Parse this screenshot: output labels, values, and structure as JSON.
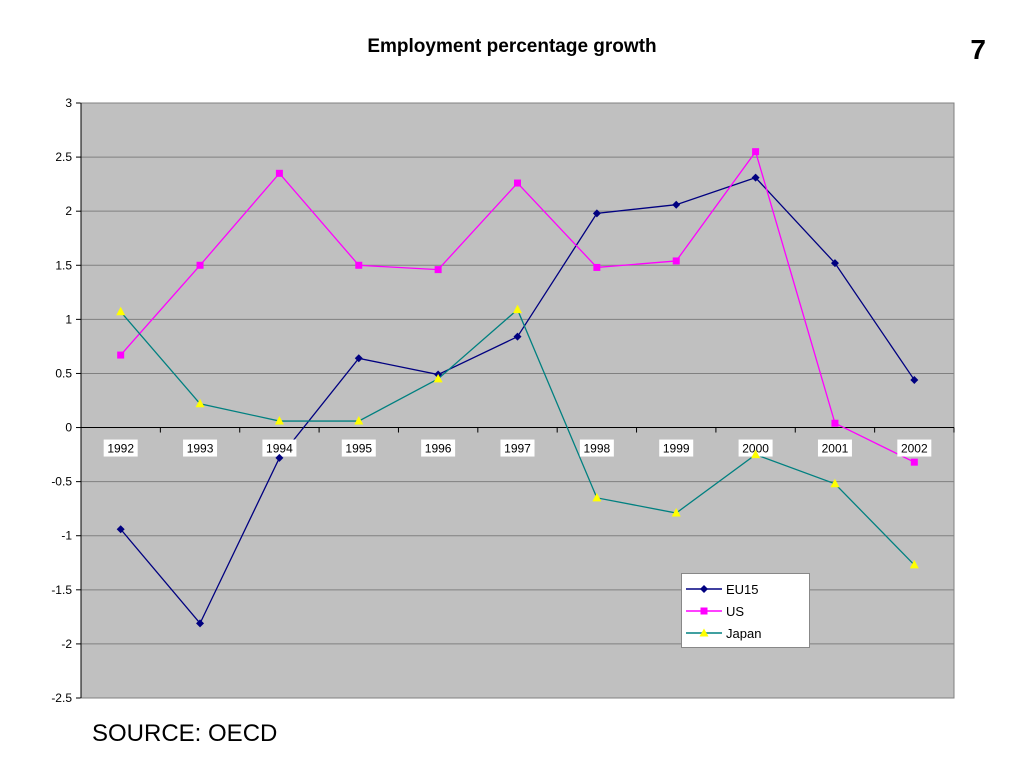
{
  "slide": {
    "page_number": "7",
    "source": "SOURCE: OECD"
  },
  "chart_data": {
    "type": "line",
    "title": "Employment percentage growth",
    "xlabel": "",
    "ylabel": "",
    "categories": [
      "1992",
      "1993",
      "1994",
      "1995",
      "1996",
      "1997",
      "1998",
      "1999",
      "2000",
      "2001",
      "2002"
    ],
    "ylim": [
      -2.5,
      3
    ],
    "yticks": [
      3,
      2.5,
      2,
      1.5,
      1,
      0.5,
      0,
      -0.5,
      -1,
      -1.5,
      -2,
      -2.5
    ],
    "ytick_labels": [
      "3",
      "2.5",
      "2",
      "1.5",
      "1",
      "0.5",
      "0",
      "-0.5",
      "-1",
      "-1.5",
      "-2",
      "-2.5"
    ],
    "grid": true,
    "legend_position": "bottom-right",
    "plot_background": "#c0c0c0",
    "series": [
      {
        "name": "EU15",
        "color": "#000080",
        "marker": "diamond",
        "values": [
          -0.94,
          -1.81,
          -0.28,
          0.64,
          0.49,
          0.84,
          1.98,
          2.06,
          2.31,
          1.52,
          0.44
        ]
      },
      {
        "name": "US",
        "color": "#ff00ff",
        "marker": "square",
        "values": [
          0.67,
          1.5,
          2.35,
          1.5,
          1.46,
          2.26,
          1.48,
          1.54,
          2.55,
          0.04,
          -0.32
        ]
      },
      {
        "name": "Japan",
        "color": "#008080",
        "marker_color": "#ffff00",
        "marker": "triangle",
        "values": [
          1.07,
          0.22,
          0.06,
          0.06,
          0.45,
          1.09,
          -0.65,
          -0.79,
          -0.25,
          -0.52,
          -1.27
        ]
      }
    ]
  }
}
